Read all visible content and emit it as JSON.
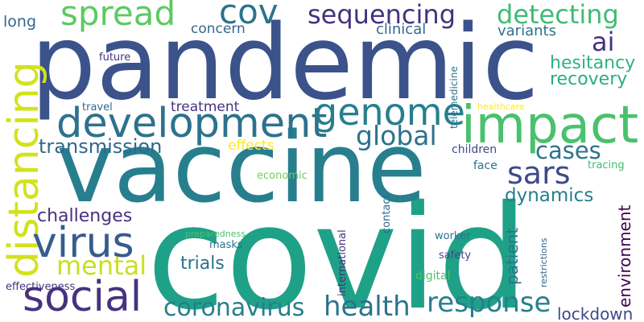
{
  "palette": {
    "background": "#ffffff",
    "dark_purple": "#46327e",
    "blue": "#365c8d",
    "teal": "#277f8e",
    "green": "#1fa187",
    "light_green": "#4ac16d",
    "lime": "#a0da39",
    "yellow": "#fde725"
  },
  "words": [
    "covid",
    "vaccine",
    "pandemic",
    "impact",
    "development",
    "distancing",
    "social",
    "virus",
    "genome",
    "spread",
    "cov",
    "sequencing",
    "detecting",
    "health",
    "response",
    "coronavirus",
    "mental",
    "sars",
    "cases",
    "global",
    "ai",
    "dynamics",
    "transmission",
    "hesitancy",
    "recovery",
    "challenges",
    "trials",
    "lockdown",
    "environment",
    "patient",
    "variants",
    "clinical",
    "concern",
    "long",
    "effects",
    "treatment",
    "telemedicine",
    "children",
    "face",
    "tracing",
    "economic",
    "contact",
    "international",
    "worker",
    "safety",
    "digital",
    "masks",
    "preparedness",
    "restrictions",
    "travel",
    "future",
    "healthcare",
    "effectiveness"
  ]
}
